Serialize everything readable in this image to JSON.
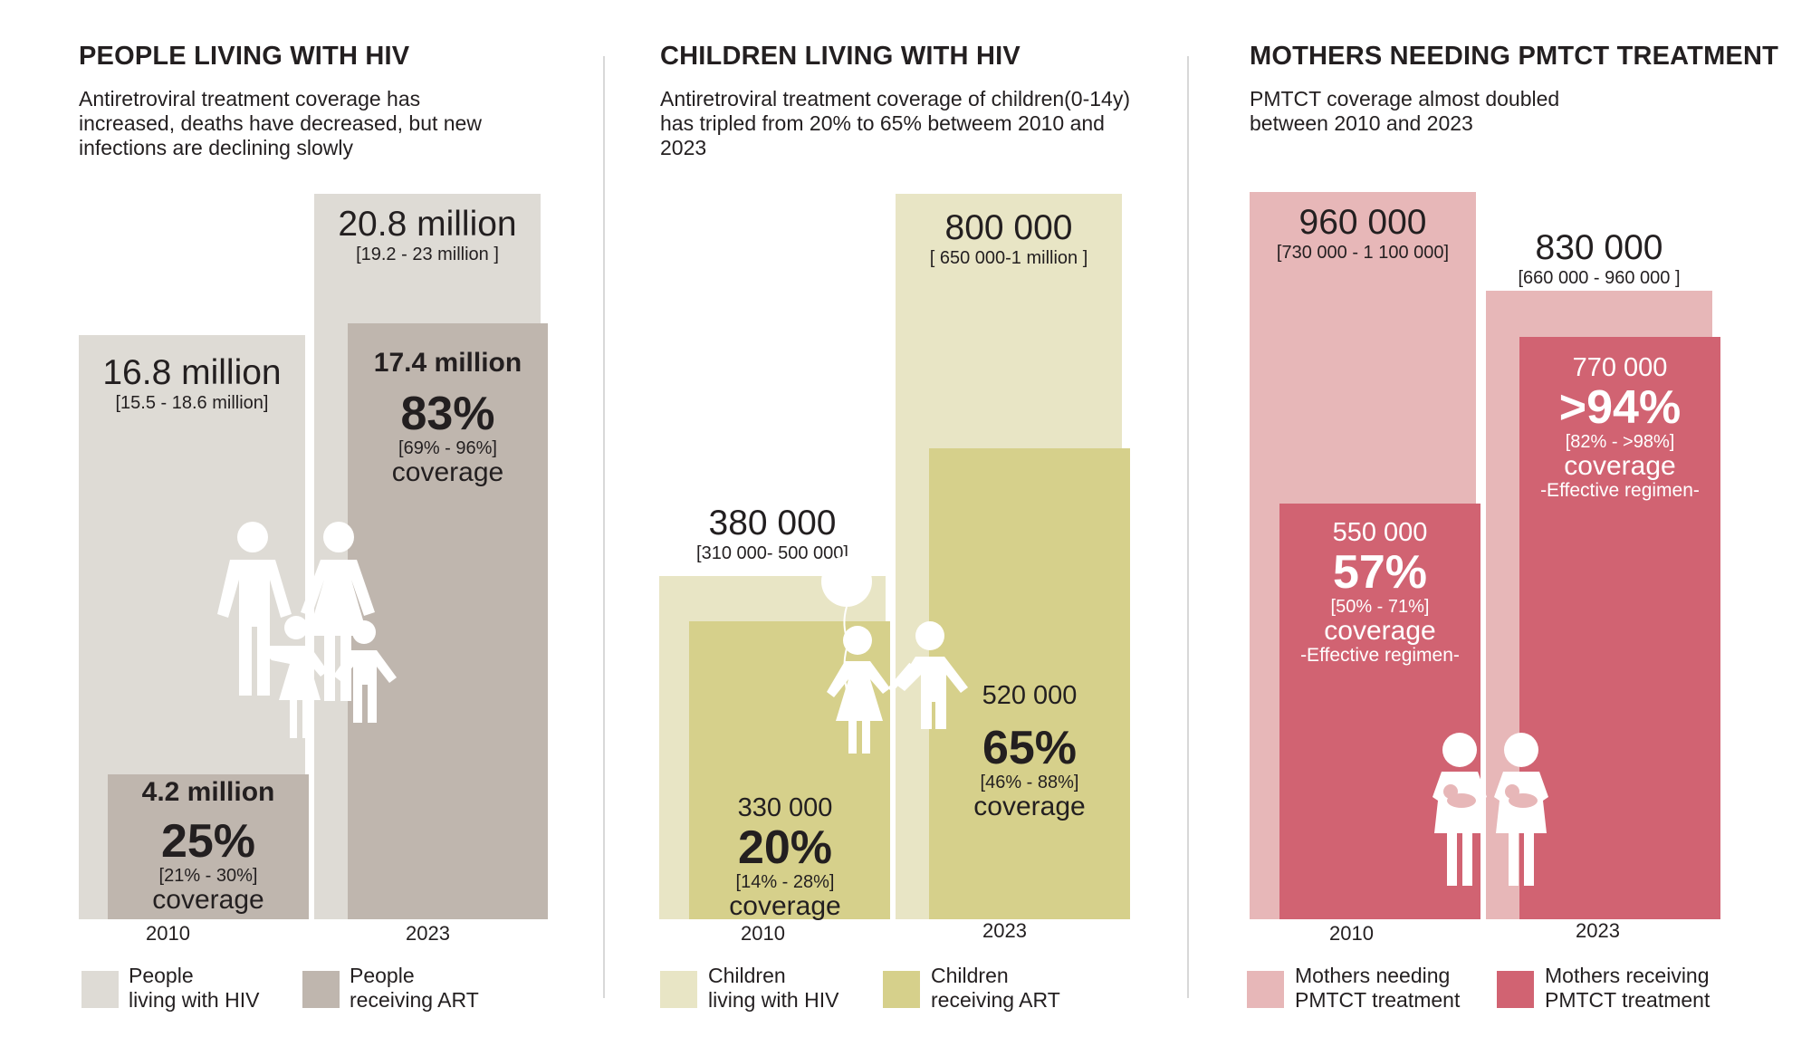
{
  "colors": {
    "hiv_light": "#dedbd5",
    "hiv_dark": "#bfb6ae",
    "child_light": "#e8e5c5",
    "child_dark": "#d6d08b",
    "moth_light": "#e7b7b8",
    "moth_dark": "#d16372"
  },
  "panels": [
    {
      "title": "PEOPLE LIVING WITH HIV",
      "subtitle": "Antiretroviral treatment coverage has increased, deaths have decreased, but new infections are declining slowly",
      "year_2010": "2010",
      "year_2023": "2023",
      "bars": {
        "light_2010": {
          "value": "16.8 million",
          "range": "[15.5 - 18.6 million]"
        },
        "light_2023": {
          "value": "20.8 million",
          "range": "[19.2 - 23 million ]"
        },
        "dark_2010": {
          "value": "4.2 million",
          "pct": "25%",
          "range": "[21% - 30%]",
          "coverage": "coverage"
        },
        "dark_2023": {
          "value": "17.4 million",
          "pct": "83%",
          "range": "[69% - 96%]",
          "coverage": "coverage"
        }
      },
      "legend": [
        {
          "label_line1": "People",
          "label_line2": "living with HIV"
        },
        {
          "label_line1": "People",
          "label_line2": "receiving ART"
        }
      ]
    },
    {
      "title": "CHILDREN LIVING WITH HIV",
      "subtitle": "Antiretroviral treatment coverage of children(0-14y) has tripled from 20% to 65% betweem 2010 and 2023",
      "year_2010": "2010",
      "year_2023": "2023",
      "bars": {
        "light_2010": {
          "value": "380 000",
          "range": "[310 000- 500 000]"
        },
        "light_2023": {
          "value": "800 000",
          "range": "[ 650 000-1 million ]"
        },
        "dark_2010": {
          "value": "330 000",
          "pct": "20%",
          "range": "[14% - 28%]",
          "coverage": "coverage"
        },
        "dark_2023": {
          "value": "520 000",
          "pct": "65%",
          "range": "[46% - 88%]",
          "coverage": "coverage"
        }
      },
      "legend": [
        {
          "label_line1": "Children",
          "label_line2": "living with HIV"
        },
        {
          "label_line1": "Children",
          "label_line2": "receiving ART"
        }
      ]
    },
    {
      "title": "MOTHERS NEEDING PMTCT TREATMENT",
      "subtitle": "PMTCT coverage almost doubled between 2010 and 2023",
      "year_2010": "2010",
      "year_2023": "2023",
      "bars": {
        "light_2010": {
          "value": "960 000",
          "range": "[730 000 - 1 100 000]"
        },
        "light_2023": {
          "value": "830 000",
          "range": "[660 000 - 960 000 ]"
        },
        "dark_2010": {
          "value": "550 000",
          "pct": "57%",
          "range": "[50% - 71%]",
          "coverage": "coverage",
          "note": "-Effective regimen-"
        },
        "dark_2023": {
          "value": "770 000",
          "pct": ">94%",
          "range": "[82% - >98%]",
          "coverage": "coverage",
          "note": "-Effective regimen-"
        }
      },
      "legend": [
        {
          "label_line1": "Mothers needing",
          "label_line2": "PMTCT treatment"
        },
        {
          "label_line1": "Mothers receiving",
          "label_line2": "PMTCT treatment"
        }
      ]
    }
  ],
  "chart_data": [
    {
      "type": "bar",
      "title": "PEOPLE LIVING WITH HIV",
      "categories": [
        "2010",
        "2023"
      ],
      "series": [
        {
          "name": "People living with HIV",
          "values": [
            16.8,
            20.8
          ]
        },
        {
          "name": "People receiving ART",
          "values": [
            4.2,
            17.4
          ]
        }
      ],
      "coverage_percent": [
        25,
        83
      ],
      "ylim": [
        0,
        23.5
      ]
    },
    {
      "type": "bar",
      "title": "CHILDREN LIVING WITH HIV",
      "categories": [
        "2010",
        "2023"
      ],
      "series": [
        {
          "name": "Children living with HIV",
          "values": [
            380000,
            800000
          ]
        },
        {
          "name": "Children receiving ART",
          "values": [
            330000,
            520000
          ]
        }
      ],
      "coverage_percent": [
        20,
        65
      ],
      "ylim": [
        0,
        800000
      ]
    },
    {
      "type": "bar",
      "title": "MOTHERS NEEDING PMTCT TREATMENT",
      "categories": [
        "2010",
        "2023"
      ],
      "series": [
        {
          "name": "Mothers needing PMTCT treatment",
          "values": [
            960000,
            830000
          ]
        },
        {
          "name": "Mothers receiving PMTCT treatment",
          "values": [
            550000,
            770000
          ]
        }
      ],
      "coverage_percent": [
        57,
        94
      ],
      "ylim": [
        0,
        960000
      ]
    }
  ]
}
